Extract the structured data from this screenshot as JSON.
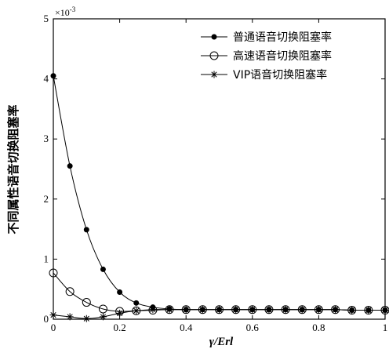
{
  "chart_data": {
    "type": "line",
    "xlabel": "γ/Erl",
    "ylabel": "不同属性语音切换阻塞率",
    "y_multiplier": "×10",
    "y_exponent": "-3",
    "xlim": [
      0,
      1
    ],
    "ylim": [
      0,
      5
    ],
    "x_ticks": [
      "0",
      "0.2",
      "0.4",
      "0.6",
      "0.8",
      "1"
    ],
    "y_ticks": [
      "0",
      "1",
      "2",
      "3",
      "4",
      "5"
    ],
    "legend_position": "top-right",
    "grid": false,
    "x": [
      0,
      0.05,
      0.1,
      0.15,
      0.2,
      0.25,
      0.3,
      0.35,
      0.4,
      0.45,
      0.5,
      0.55,
      0.6,
      0.65,
      0.7,
      0.75,
      0.8,
      0.85,
      0.9,
      0.95,
      1.0
    ],
    "series": [
      {
        "name": "普通语音切换阻塞率",
        "marker": "filled-circle",
        "values": [
          4.05,
          2.55,
          1.49,
          0.83,
          0.45,
          0.27,
          0.2,
          0.17,
          0.16,
          0.16,
          0.16,
          0.16,
          0.16,
          0.16,
          0.16,
          0.16,
          0.16,
          0.16,
          0.15,
          0.15,
          0.15
        ]
      },
      {
        "name": "高速语音切换阻塞率",
        "marker": "open-circle",
        "values": [
          0.77,
          0.46,
          0.28,
          0.17,
          0.13,
          0.14,
          0.15,
          0.16,
          0.16,
          0.16,
          0.16,
          0.16,
          0.16,
          0.16,
          0.16,
          0.16,
          0.16,
          0.16,
          0.15,
          0.15,
          0.15
        ]
      },
      {
        "name": "VIP语音切换阻塞率",
        "marker": "star",
        "values": [
          0.07,
          0.04,
          0.01,
          0.04,
          0.1,
          0.14,
          0.16,
          0.16,
          0.16,
          0.16,
          0.16,
          0.16,
          0.16,
          0.16,
          0.16,
          0.16,
          0.16,
          0.16,
          0.15,
          0.15,
          0.15
        ]
      }
    ]
  }
}
